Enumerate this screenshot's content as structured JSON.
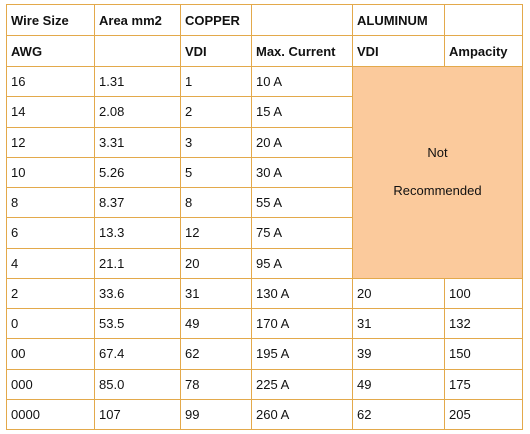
{
  "table": {
    "header_row_1": {
      "wire_size": "Wire Size",
      "area": "Area mm2",
      "copper": "COPPER",
      "aluminum": "ALUMINUM"
    },
    "header_row_2": {
      "awg": "AWG",
      "copper_vdi": "VDI",
      "max_current": "Max. Current",
      "aluminum_vdi": "VDI",
      "ampacity": "Ampacity"
    },
    "note": [
      "Not",
      "Recommended"
    ],
    "rows": [
      [
        "16",
        "1.31",
        "1",
        "10 A"
      ],
      [
        "14",
        "2.08",
        "2",
        "15 A"
      ],
      [
        "12",
        "3.31",
        "3",
        "20 A"
      ],
      [
        "10",
        "5.26",
        "5",
        "30 A"
      ],
      [
        "8",
        "8.37",
        "8",
        "55 A"
      ],
      [
        "6",
        "13.3",
        "12",
        "75 A"
      ],
      [
        "4",
        "21.1",
        "20",
        "95 A"
      ],
      [
        "2",
        "33.6",
        "31",
        "130 A",
        "20",
        "100"
      ],
      [
        "0",
        "53.5",
        "49",
        "170 A",
        "31",
        "132"
      ],
      [
        "00",
        "67.4",
        "62",
        "195 A",
        "39",
        "150"
      ],
      [
        "000",
        "85.0",
        "78",
        "225 A",
        "49",
        "175"
      ],
      [
        "0000",
        "107",
        "99",
        "260 A",
        "62",
        "205"
      ]
    ]
  }
}
